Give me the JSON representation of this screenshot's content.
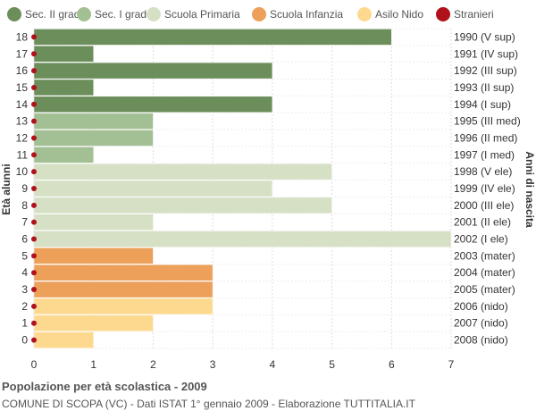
{
  "chart_data": {
    "type": "bar",
    "orientation": "horizontal",
    "ylabel_left": "Età alunni",
    "ylabel_right": "Anni di nascita",
    "xlim": [
      0,
      7
    ],
    "x_ticks": [
      0,
      1,
      2,
      3,
      4,
      5,
      6,
      7
    ],
    "grid": true,
    "legend_position": "top",
    "legend": [
      {
        "name": "Sec. II grado",
        "color": "#6b8e5a"
      },
      {
        "name": "Sec. I grado",
        "color": "#a3bf94"
      },
      {
        "name": "Scuola Primaria",
        "color": "#d5e0c4"
      },
      {
        "name": "Scuola Infanzia",
        "color": "#eda05a"
      },
      {
        "name": "Asilo Nido",
        "color": "#fdd98f"
      },
      {
        "name": "Stranieri",
        "color": "#b0121b"
      }
    ],
    "rows": [
      {
        "age": "18",
        "year": "1990 (V sup)",
        "value": 6,
        "group": 0,
        "stranieri": 0
      },
      {
        "age": "17",
        "year": "1991 (IV sup)",
        "value": 1,
        "group": 0,
        "stranieri": 0
      },
      {
        "age": "16",
        "year": "1992 (III sup)",
        "value": 4,
        "group": 0,
        "stranieri": 0
      },
      {
        "age": "15",
        "year": "1993 (II sup)",
        "value": 1,
        "group": 0,
        "stranieri": 0
      },
      {
        "age": "14",
        "year": "1994 (I sup)",
        "value": 4,
        "group": 0,
        "stranieri": 0
      },
      {
        "age": "13",
        "year": "1995 (III med)",
        "value": 2,
        "group": 1,
        "stranieri": 0
      },
      {
        "age": "12",
        "year": "1996 (II med)",
        "value": 2,
        "group": 1,
        "stranieri": 0
      },
      {
        "age": "11",
        "year": "1997 (I med)",
        "value": 1,
        "group": 1,
        "stranieri": 0
      },
      {
        "age": "10",
        "year": "1998 (V ele)",
        "value": 5,
        "group": 2,
        "stranieri": 0
      },
      {
        "age": "9",
        "year": "1999 (IV ele)",
        "value": 4,
        "group": 2,
        "stranieri": 0
      },
      {
        "age": "8",
        "year": "2000 (III ele)",
        "value": 5,
        "group": 2,
        "stranieri": 0
      },
      {
        "age": "7",
        "year": "2001 (II ele)",
        "value": 2,
        "group": 2,
        "stranieri": 0
      },
      {
        "age": "6",
        "year": "2002 (I ele)",
        "value": 7,
        "group": 2,
        "stranieri": 0
      },
      {
        "age": "5",
        "year": "2003 (mater)",
        "value": 2,
        "group": 3,
        "stranieri": 0
      },
      {
        "age": "4",
        "year": "2004 (mater)",
        "value": 3,
        "group": 3,
        "stranieri": 0
      },
      {
        "age": "3",
        "year": "2005 (mater)",
        "value": 3,
        "group": 3,
        "stranieri": 0
      },
      {
        "age": "2",
        "year": "2006 (nido)",
        "value": 3,
        "group": 4,
        "stranieri": 0
      },
      {
        "age": "1",
        "year": "2007 (nido)",
        "value": 2,
        "group": 4,
        "stranieri": 0
      },
      {
        "age": "0",
        "year": "2008 (nido)",
        "value": 1,
        "group": 4,
        "stranieri": 0
      }
    ]
  },
  "footer": {
    "title": "Popolazione per età scolastica - 2009",
    "subtitle": "COMUNE DI SCOPA (VC) - Dati ISTAT 1° gennaio 2009 - Elaborazione TUTTITALIA.IT"
  }
}
